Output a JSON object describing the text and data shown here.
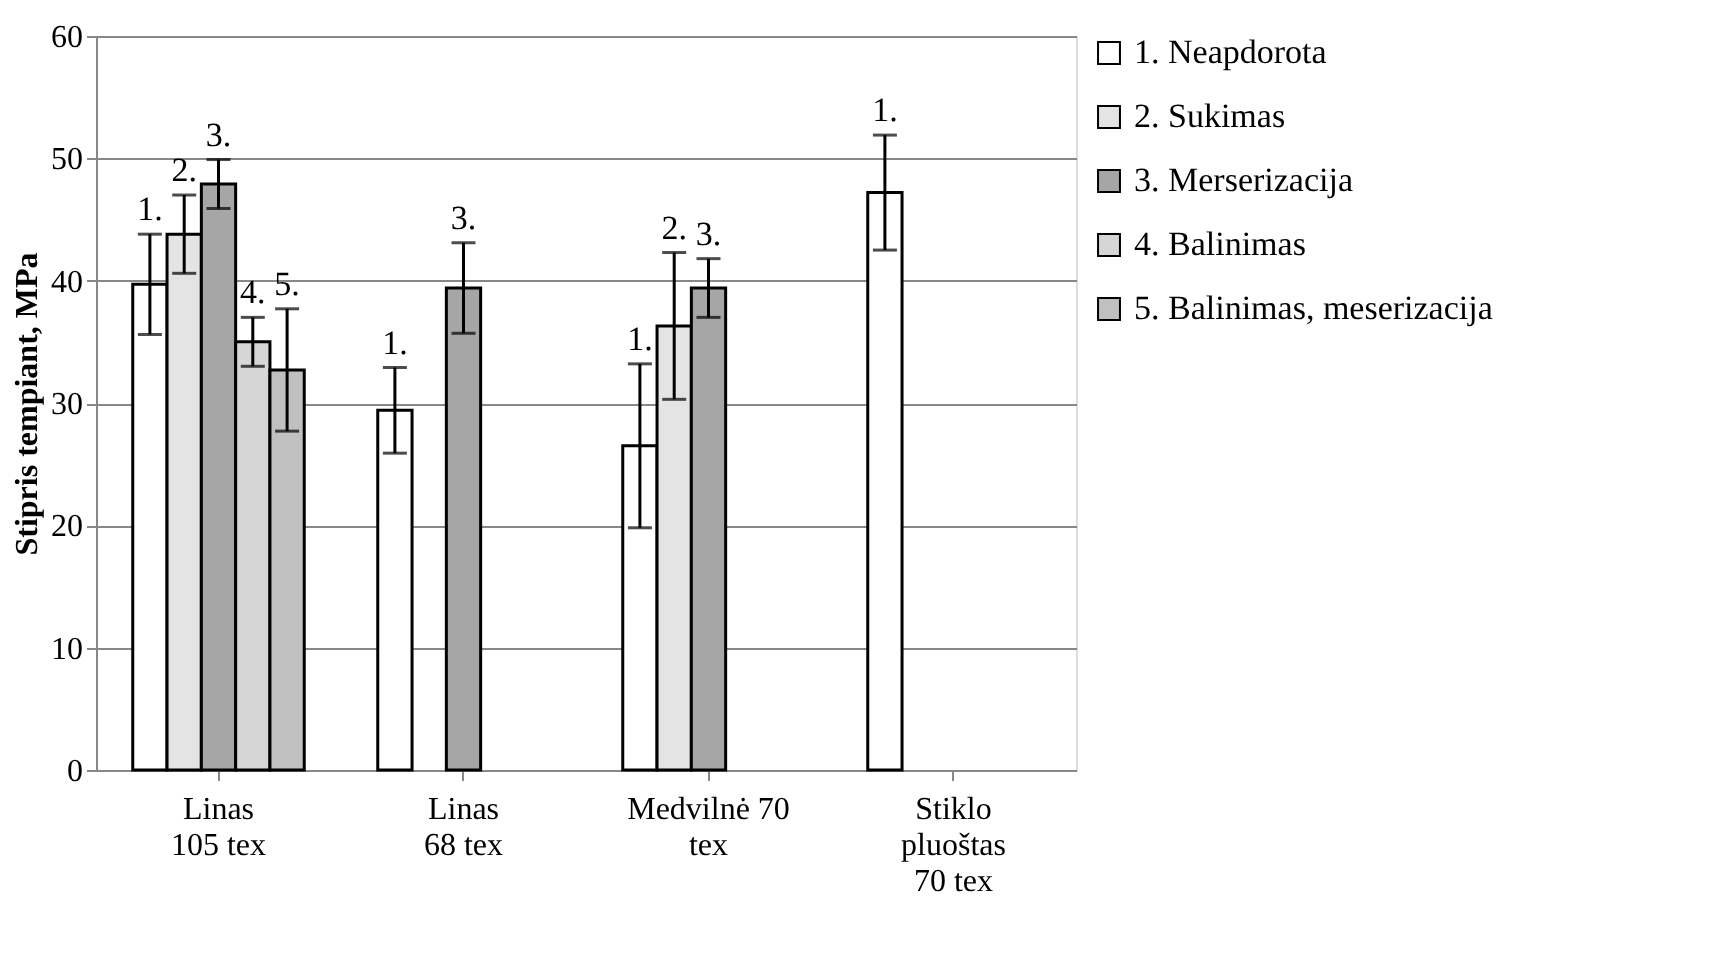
{
  "chart_data": {
    "type": "bar",
    "ylabel": "Stipris tempiant, MPa",
    "categories": [
      "Linas\n105 tex",
      "Linas\n68 tex",
      "Medvilnė 70\ntex",
      "Stiklo\npluoštas\n70 tex"
    ],
    "series": [
      {
        "name": "1. Neapdorota",
        "color": "#ffffff",
        "values": [
          39.7,
          29.4,
          26.5,
          47.2
        ],
        "errors": [
          4.1,
          3.5,
          6.7,
          4.7
        ]
      },
      {
        "name": "2. Sukimas",
        "color": "#e4e4e4",
        "values": [
          43.8,
          null,
          36.3,
          null
        ],
        "errors": [
          3.2,
          null,
          6.0,
          null
        ]
      },
      {
        "name": "3. Merserizacija",
        "color": "#a6a6a6",
        "values": [
          47.9,
          39.4,
          39.4,
          null
        ],
        "errors": [
          2.0,
          3.7,
          2.4,
          null
        ]
      },
      {
        "name": "4. Balinimas",
        "color": "#d6d6d6",
        "values": [
          35.0,
          null,
          null,
          null
        ],
        "errors": [
          2.0,
          null,
          null,
          null
        ]
      },
      {
        "name": "5. Balinimas, meserizacija",
        "color": "#c0c0c0",
        "values": [
          32.7,
          null,
          null,
          null
        ],
        "errors": [
          5.0,
          null,
          null,
          null
        ]
      }
    ],
    "annotations": [
      "1.",
      "2.",
      "3.",
      "4.",
      "5.",
      "1.",
      "3.",
      "1.",
      "2.",
      "3.",
      "1."
    ],
    "ylim": [
      0,
      60
    ],
    "yticks": [
      0,
      10,
      20,
      30,
      40,
      50,
      60
    ],
    "grid": "y",
    "legend": "right"
  }
}
